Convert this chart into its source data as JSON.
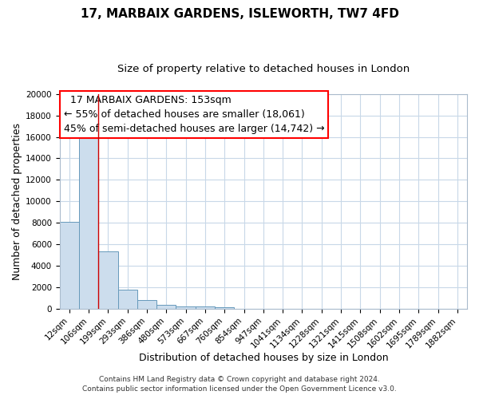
{
  "title": "17, MARBAIX GARDENS, ISLEWORTH, TW7 4FD",
  "subtitle": "Size of property relative to detached houses in London",
  "xlabel": "Distribution of detached houses by size in London",
  "ylabel": "Number of detached properties",
  "bar_labels": [
    "12sqm",
    "106sqm",
    "199sqm",
    "293sqm",
    "386sqm",
    "480sqm",
    "573sqm",
    "667sqm",
    "760sqm",
    "854sqm",
    "947sqm",
    "1041sqm",
    "1134sqm",
    "1228sqm",
    "1321sqm",
    "1415sqm",
    "1508sqm",
    "1602sqm",
    "1695sqm",
    "1789sqm",
    "1882sqm"
  ],
  "bar_values": [
    8100,
    16500,
    5300,
    1750,
    750,
    320,
    220,
    160,
    120,
    0,
    0,
    0,
    0,
    0,
    0,
    0,
    0,
    0,
    0,
    0,
    0
  ],
  "bar_color": "#ccdded",
  "bar_edge_color": "#6699bb",
  "ylim": [
    0,
    20000
  ],
  "yticks": [
    0,
    2000,
    4000,
    6000,
    8000,
    10000,
    12000,
    14000,
    16000,
    18000,
    20000
  ],
  "property_label": "17 MARBAIX GARDENS: 153sqm",
  "pct_smaller": 55,
  "n_smaller": 18061,
  "pct_larger": 45,
  "n_larger": 14742,
  "red_line_x": 1.5,
  "footer_line1": "Contains HM Land Registry data © Crown copyright and database right 2024.",
  "footer_line2": "Contains public sector information licensed under the Open Government Licence v3.0.",
  "bg_color": "#ffffff",
  "grid_color": "#c8d8e8",
  "title_fontsize": 11,
  "subtitle_fontsize": 9.5,
  "axis_label_fontsize": 9,
  "tick_fontsize": 7.5,
  "annotation_fontsize": 9,
  "footer_fontsize": 6.5
}
